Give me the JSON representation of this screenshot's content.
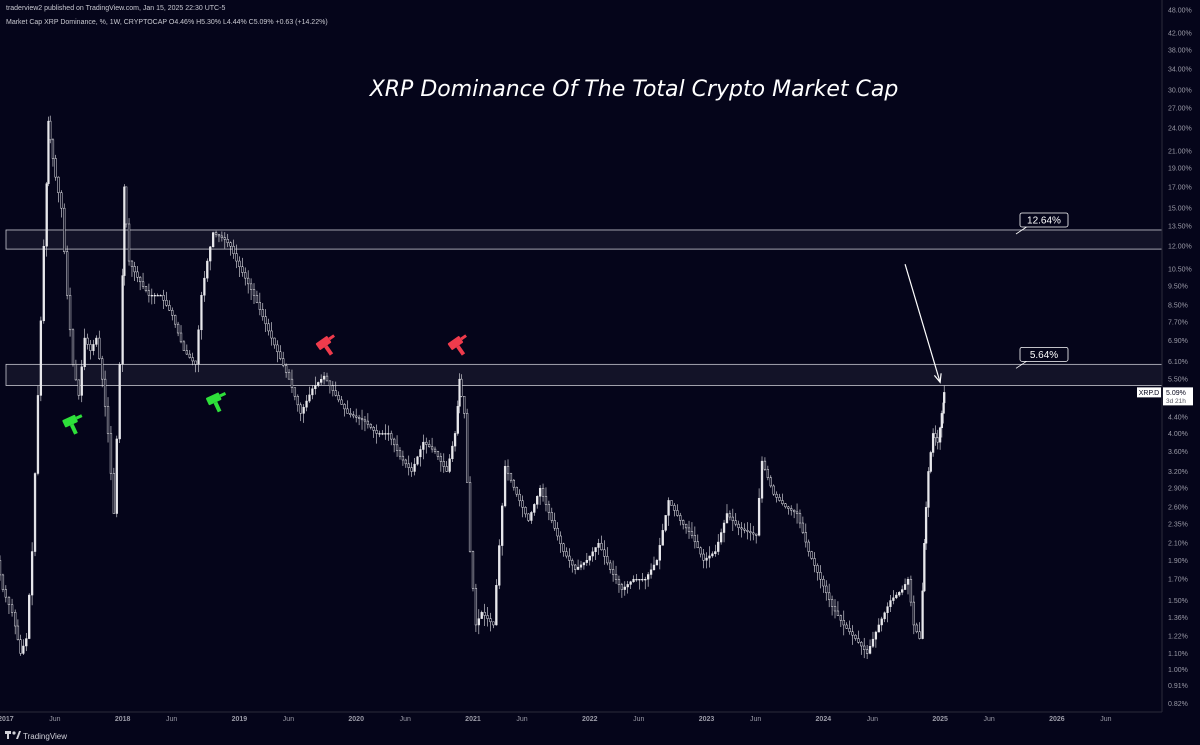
{
  "header": {
    "published": "traderview2 published on TradingView.com, Jan 15, 2025 22:30 UTC-5",
    "legend": "Market Cap XRP Dominance, %, 1W, CRYPTOCAP  O4.46%  H5.30%  L4.44%  C5.09%  +0.63 (+14.22%)"
  },
  "footer": {
    "brand": "TradingView",
    "logo_icon": "tradingview-logo-icon"
  },
  "colors": {
    "background": "#05051a",
    "candle": "#e8e8ec",
    "zone_border": "#c8c8d0",
    "zone_fill": "rgba(120,120,150,0.12)",
    "buy_arrow": "#2ee03a",
    "sell_arrow": "#ef3b4c",
    "grid_axis_text": "#9a9aa6"
  },
  "chart_data": {
    "type": "line",
    "title": "XRP Dominance Of The Total Crypto Market Cap",
    "series": [
      {
        "values": [
          [
            2016.95,
            1.9
          ],
          [
            2017.0,
            1.6
          ],
          [
            2017.08,
            1.4
          ],
          [
            2017.15,
            1.1
          ],
          [
            2017.2,
            1.2
          ],
          [
            2017.25,
            2.0
          ],
          [
            2017.3,
            5.0
          ],
          [
            2017.35,
            12.0
          ],
          [
            2017.38,
            25.0
          ],
          [
            2017.45,
            18.0
          ],
          [
            2017.5,
            15.0
          ],
          [
            2017.55,
            9.0
          ],
          [
            2017.6,
            6.0
          ],
          [
            2017.65,
            5.0
          ],
          [
            2017.7,
            7.0
          ],
          [
            2017.75,
            6.5
          ],
          [
            2017.8,
            7.0
          ],
          [
            2017.85,
            5.5
          ],
          [
            2017.9,
            4.0
          ],
          [
            2017.95,
            2.5
          ],
          [
            2018.0,
            6.0
          ],
          [
            2018.03,
            17.0
          ],
          [
            2018.08,
            11.0
          ],
          [
            2018.15,
            10.0
          ],
          [
            2018.25,
            9.0
          ],
          [
            2018.35,
            9.0
          ],
          [
            2018.45,
            8.0
          ],
          [
            2018.55,
            6.5
          ],
          [
            2018.65,
            6.0
          ],
          [
            2018.7,
            9.0
          ],
          [
            2018.75,
            11.0
          ],
          [
            2018.8,
            13.0
          ],
          [
            2018.9,
            12.5
          ],
          [
            2018.95,
            12.0
          ],
          [
            2019.0,
            11.0
          ],
          [
            2019.15,
            9.0
          ],
          [
            2019.3,
            7.0
          ],
          [
            2019.45,
            5.5
          ],
          [
            2019.55,
            4.5
          ],
          [
            2019.65,
            5.2
          ],
          [
            2019.75,
            5.6
          ],
          [
            2019.85,
            5.0
          ],
          [
            2019.95,
            4.5
          ],
          [
            2020.1,
            4.3
          ],
          [
            2020.2,
            4.0
          ],
          [
            2020.3,
            4.0
          ],
          [
            2020.4,
            3.5
          ],
          [
            2020.5,
            3.2
          ],
          [
            2020.6,
            3.8
          ],
          [
            2020.7,
            3.6
          ],
          [
            2020.8,
            3.2
          ],
          [
            2020.87,
            4.0
          ],
          [
            2020.9,
            5.5
          ],
          [
            2020.95,
            4.5
          ],
          [
            2021.0,
            2.0
          ],
          [
            2021.05,
            1.3
          ],
          [
            2021.1,
            1.4
          ],
          [
            2021.2,
            1.3
          ],
          [
            2021.3,
            3.3
          ],
          [
            2021.4,
            2.8
          ],
          [
            2021.5,
            2.4
          ],
          [
            2021.6,
            2.9
          ],
          [
            2021.7,
            2.4
          ],
          [
            2021.8,
            2.0
          ],
          [
            2021.9,
            1.8
          ],
          [
            2022.0,
            1.9
          ],
          [
            2022.1,
            2.1
          ],
          [
            2022.2,
            1.8
          ],
          [
            2022.3,
            1.6
          ],
          [
            2022.4,
            1.7
          ],
          [
            2022.5,
            1.7
          ],
          [
            2022.6,
            1.9
          ],
          [
            2022.7,
            2.7
          ],
          [
            2022.8,
            2.4
          ],
          [
            2022.9,
            2.2
          ],
          [
            2023.0,
            1.9
          ],
          [
            2023.1,
            2.0
          ],
          [
            2023.2,
            2.5
          ],
          [
            2023.3,
            2.3
          ],
          [
            2023.45,
            2.2
          ],
          [
            2023.5,
            3.4
          ],
          [
            2023.6,
            2.8
          ],
          [
            2023.7,
            2.6
          ],
          [
            2023.8,
            2.5
          ],
          [
            2023.9,
            2.0
          ],
          [
            2024.0,
            1.7
          ],
          [
            2024.1,
            1.45
          ],
          [
            2024.2,
            1.3
          ],
          [
            2024.3,
            1.2
          ],
          [
            2024.4,
            1.1
          ],
          [
            2024.5,
            1.3
          ],
          [
            2024.6,
            1.5
          ],
          [
            2024.7,
            1.6
          ],
          [
            2024.75,
            1.7
          ],
          [
            2024.8,
            1.3
          ],
          [
            2024.85,
            1.2
          ],
          [
            2024.88,
            2.1
          ],
          [
            2024.92,
            3.2
          ],
          [
            2024.96,
            4.0
          ],
          [
            2025.0,
            3.8
          ],
          [
            2025.03,
            4.5
          ],
          [
            2025.04,
            5.09
          ]
        ]
      }
    ],
    "y_scale": "log",
    "ylim": [
      0.78,
      48.0
    ],
    "xlim": [
      2016.95,
      2026.9
    ],
    "y_ticks": [
      "48.00%",
      "42.00%",
      "38.00%",
      "34.00%",
      "30.00%",
      "27.00%",
      "24.00%",
      "21.00%",
      "19.00%",
      "17.00%",
      "15.00%",
      "13.50%",
      "12.00%",
      "10.50%",
      "9.50%",
      "8.50%",
      "7.70%",
      "6.90%",
      "6.10%",
      "5.50%",
      "4.40%",
      "4.00%",
      "3.60%",
      "3.20%",
      "2.90%",
      "2.60%",
      "2.35%",
      "2.10%",
      "1.90%",
      "1.70%",
      "1.50%",
      "1.36%",
      "1.22%",
      "1.10%",
      "1.00%",
      "0.91%",
      "0.82%"
    ],
    "x_ticks": [
      {
        "label": "2017",
        "x": 2017.0,
        "bold": true
      },
      {
        "label": "Jun",
        "x": 2017.42
      },
      {
        "label": "2018",
        "x": 2018.0,
        "bold": true
      },
      {
        "label": "Jun",
        "x": 2018.42
      },
      {
        "label": "2019",
        "x": 2019.0,
        "bold": true
      },
      {
        "label": "Jun",
        "x": 2019.42
      },
      {
        "label": "2020",
        "x": 2020.0,
        "bold": true
      },
      {
        "label": "Jun",
        "x": 2020.42
      },
      {
        "label": "2021",
        "x": 2021.0,
        "bold": true
      },
      {
        "label": "Jun",
        "x": 2021.42
      },
      {
        "label": "2022",
        "x": 2022.0,
        "bold": true
      },
      {
        "label": "Jun",
        "x": 2022.42
      },
      {
        "label": "2023",
        "x": 2023.0,
        "bold": true
      },
      {
        "label": "Jun",
        "x": 2023.42
      },
      {
        "label": "2024",
        "x": 2024.0,
        "bold": true
      },
      {
        "label": "Jun",
        "x": 2024.42
      },
      {
        "label": "2025",
        "x": 2025.0,
        "bold": true
      },
      {
        "label": "Jun",
        "x": 2025.42
      },
      {
        "label": "2026",
        "x": 2026.0,
        "bold": true
      },
      {
        "label": "Jun",
        "x": 2026.42
      }
    ],
    "zones": [
      {
        "name": "upper-resistance-zone",
        "y_low": 11.8,
        "y_high": 13.2,
        "label": "12.64%"
      },
      {
        "name": "lower-resistance-zone",
        "y_low": 5.3,
        "y_high": 6.0,
        "label": "5.64%"
      }
    ],
    "price_tag": {
      "symbol": "XRP.D",
      "value": "5.09%",
      "countdown": "3d 21h",
      "y": 5.09
    },
    "signals": [
      {
        "type": "buy",
        "x": 2017.55,
        "y": 4.3
      },
      {
        "type": "buy",
        "x": 2018.78,
        "y": 4.9
      },
      {
        "type": "sell",
        "x": 2019.72,
        "y": 6.8
      },
      {
        "type": "sell",
        "x": 2020.85,
        "y": 6.8
      }
    ],
    "arrow": {
      "from": [
        2024.7,
        10.8
      ],
      "to": [
        2025.0,
        5.4
      ]
    }
  }
}
